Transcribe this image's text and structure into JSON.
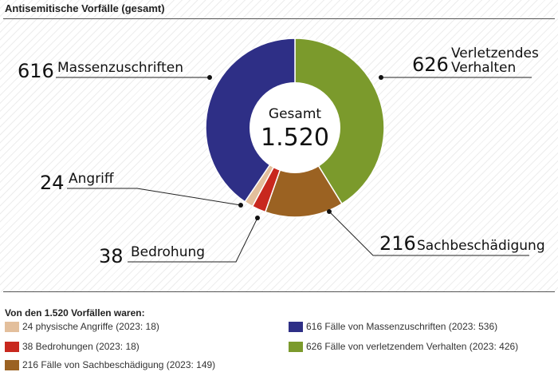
{
  "title": "Antisemitische Vorfälle (gesamt)",
  "chart_data": {
    "type": "pie",
    "donut": true,
    "center_label": "Gesamt",
    "center_value": "1.520",
    "total": 1520,
    "slices": [
      {
        "key": "verletzendes",
        "value": 626,
        "color": "#7b9a2c",
        "callout_num": "626",
        "callout_label": [
          "Verletzendes",
          "Verhalten"
        ]
      },
      {
        "key": "sachbeschaedigung",
        "value": 216,
        "color": "#9b6222",
        "callout_num": "216",
        "callout_label": [
          "Sachbeschädigung"
        ]
      },
      {
        "key": "bedrohung",
        "value": 38,
        "color": "#c8281e",
        "callout_num": "38",
        "callout_label": [
          "Bedrohung"
        ]
      },
      {
        "key": "angriff",
        "value": 24,
        "color": "#e3bf9c",
        "callout_num": "24",
        "callout_label": [
          "Angriff"
        ]
      },
      {
        "key": "massenzuschriften",
        "value": 616,
        "color": "#2e2f86",
        "callout_num": "616",
        "callout_label": [
          "Massenzuschriften"
        ]
      }
    ]
  },
  "legend": {
    "title": "Von den 1.520 Vorfällen waren:",
    "items": [
      {
        "text": "24 physische Angriffe (2023: 18)",
        "color": "#e3bf9c"
      },
      {
        "text": "38 Bedrohungen (2023: 18)",
        "color": "#c8281e"
      },
      {
        "text": "216 Fälle von Sachbeschädigung (2023: 149)",
        "color": "#9b6222"
      },
      {
        "text": "616 Fälle von Massenzuschriften (2023: 536)",
        "color": "#2e2f86"
      },
      {
        "text": "626 Fälle von verletzendem Verhalten (2023: 426)",
        "color": "#7b9a2c"
      }
    ]
  }
}
